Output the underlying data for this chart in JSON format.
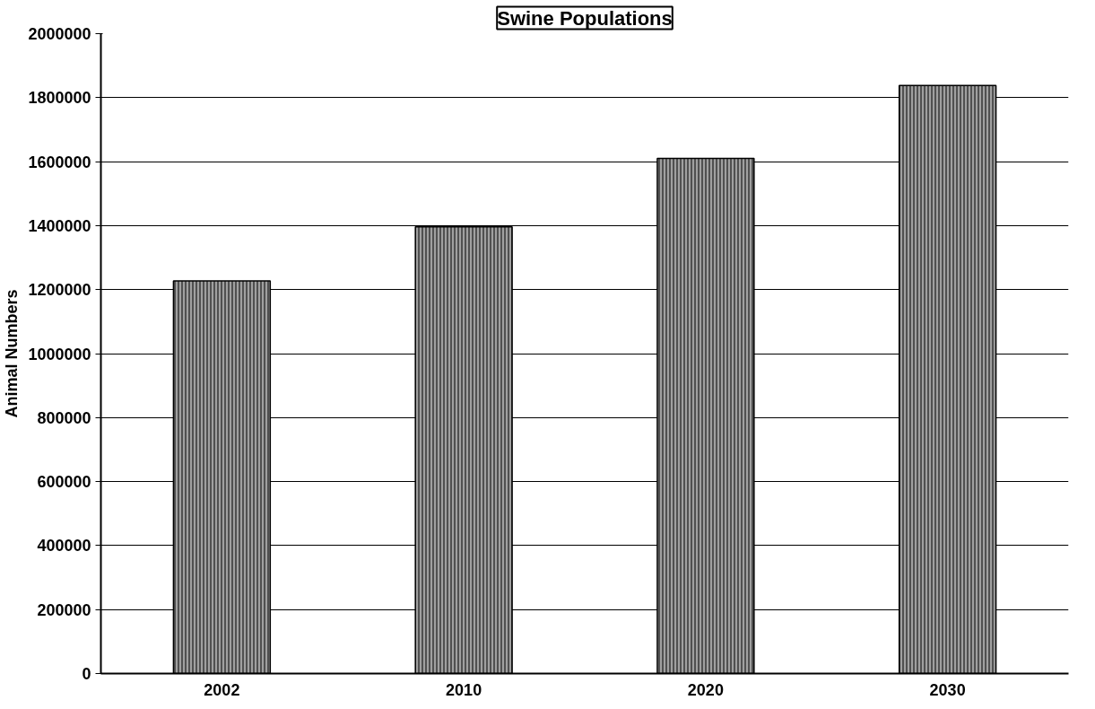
{
  "chart_data": {
    "type": "bar",
    "title": "Swine Populations",
    "ylabel": "Animal Numbers",
    "categories": [
      "2002",
      "2010",
      "2020",
      "2030"
    ],
    "values": [
      1227000,
      1396000,
      1610000,
      1838000
    ],
    "color": "#a0a0a0",
    "ylim": [
      0,
      2000000
    ],
    "yticks": [
      0,
      200000,
      400000,
      600000,
      800000,
      1000000,
      1200000,
      1400000,
      1600000,
      1800000,
      2000000
    ],
    "grid": "y"
  }
}
